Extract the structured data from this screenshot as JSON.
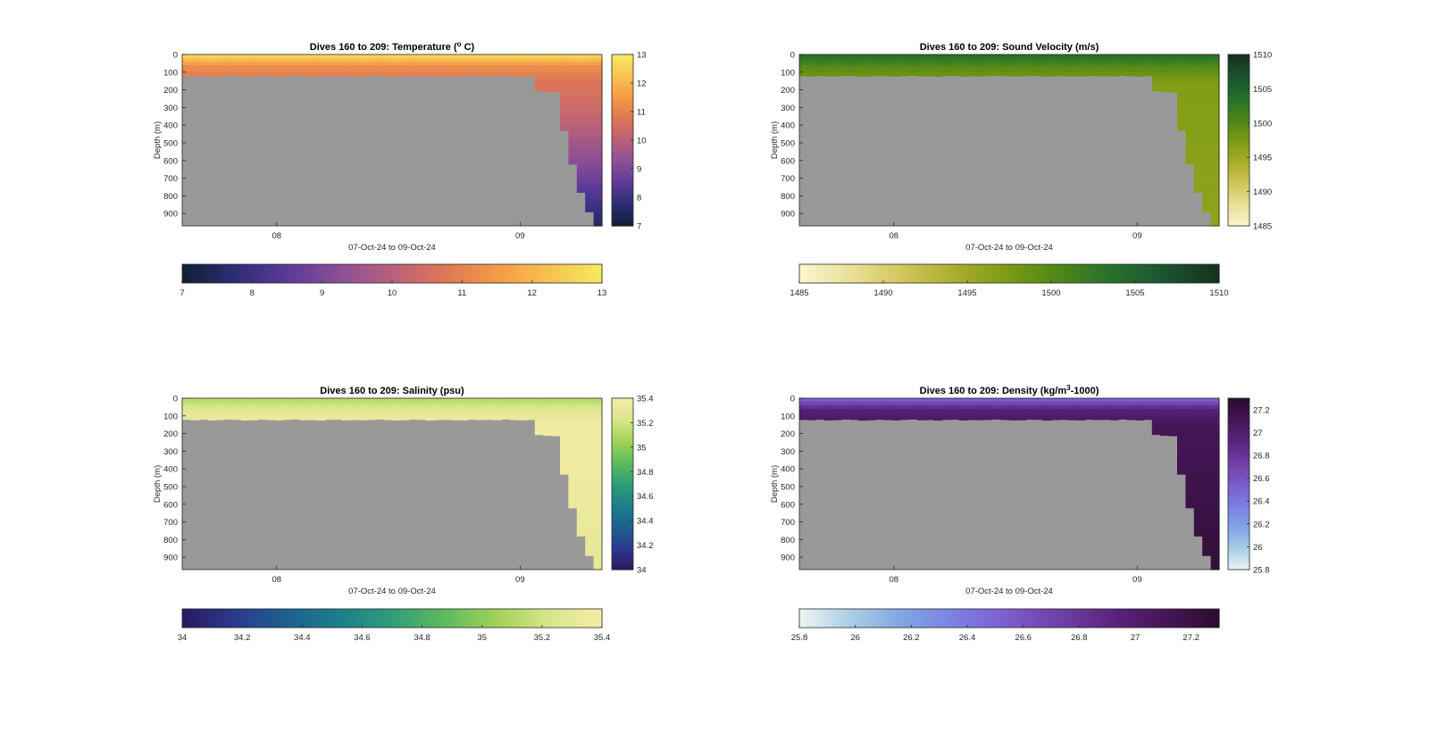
{
  "figure": {
    "background": "#ffffff",
    "mask_color": "#999999"
  },
  "chart_data": [
    {
      "type": "heatmap",
      "variable": "temperature",
      "title": "Dives 160 to 209: Temperature (",
      "title_sup": "o",
      "title_tail": " C)",
      "xlabel": "07-Oct-24 to 09-Oct-24",
      "ylabel": "Depth (m)",
      "x_ticks": [
        "08",
        "09"
      ],
      "y_ticks": [
        0,
        100,
        200,
        300,
        400,
        500,
        600,
        700,
        800,
        900
      ],
      "ylim": [
        0,
        970
      ],
      "y_reversed": true,
      "clim": [
        7,
        13
      ],
      "colorbar_ticks": [
        7,
        8,
        9,
        10,
        11,
        12,
        13
      ],
      "colormap": [
        "#0e1e33",
        "#2c2d73",
        "#5b3a98",
        "#8c4f96",
        "#b8607a",
        "#de7656",
        "#f49a46",
        "#f7c24e",
        "#f5ea63"
      ],
      "profile": {
        "surface_value": 12.6,
        "mid_value": 11.3,
        "deep_value": 10.7,
        "mixed_layer_depth": 45,
        "abyss_value": 7.4
      },
      "coverage_depth": [
        120,
        122,
        119,
        123,
        121,
        118,
        120,
        124,
        122,
        119,
        121,
        123,
        120,
        118,
        122,
        121,
        124,
        120,
        119,
        123,
        121,
        122,
        120,
        118,
        121,
        123,
        122,
        119,
        120,
        124,
        121,
        120,
        122,
        123,
        119,
        121,
        120,
        122,
        118,
        121,
        123,
        120,
        205,
        210,
        212,
        430,
        620,
        780,
        890,
        970
      ]
    },
    {
      "type": "heatmap",
      "variable": "sound_velocity",
      "title": "Dives 160 to 209: Sound Velocity (m/s)",
      "xlabel": "07-Oct-24 to 09-Oct-24",
      "ylabel": "Depth (m)",
      "x_ticks": [
        "08",
        "09"
      ],
      "y_ticks": [
        0,
        100,
        200,
        300,
        400,
        500,
        600,
        700,
        800,
        900
      ],
      "ylim": [
        0,
        970
      ],
      "y_reversed": true,
      "clim": [
        1485,
        1510
      ],
      "colorbar_ticks": [
        1485,
        1490,
        1495,
        1500,
        1505,
        1510
      ],
      "colormap": [
        "#fbf6cf",
        "#eadf98",
        "#d0c55a",
        "#a8ad2a",
        "#7a9a12",
        "#4b861a",
        "#256f2c",
        "#1b5230",
        "#17311f"
      ],
      "profile": {
        "surface_value": 1503.5,
        "mid_value": 1500.5,
        "deep_value": 1497.0,
        "mixed_layer_depth": 45,
        "abyss_value": 1496.0
      },
      "coverage_depth": [
        120,
        122,
        119,
        123,
        121,
        118,
        120,
        124,
        122,
        119,
        121,
        123,
        120,
        118,
        122,
        121,
        124,
        120,
        119,
        123,
        121,
        122,
        120,
        118,
        121,
        123,
        122,
        119,
        120,
        124,
        121,
        120,
        122,
        123,
        119,
        121,
        120,
        122,
        118,
        121,
        123,
        120,
        205,
        210,
        212,
        430,
        620,
        780,
        890,
        970
      ]
    },
    {
      "type": "heatmap",
      "variable": "salinity",
      "title": "Dives 160 to 209: Salinity (psu)",
      "xlabel": "07-Oct-24 to 09-Oct-24",
      "ylabel": "Depth (m)",
      "x_ticks": [
        "08",
        "09"
      ],
      "y_ticks": [
        0,
        100,
        200,
        300,
        400,
        500,
        600,
        700,
        800,
        900
      ],
      "ylim": [
        0,
        970
      ],
      "y_reversed": true,
      "clim": [
        34,
        35.4
      ],
      "colorbar_ticks": [
        34,
        34.2,
        34.4,
        34.6,
        34.8,
        35,
        35.2,
        35.4
      ],
      "colormap": [
        "#281a5e",
        "#2a3a8e",
        "#1e5f8e",
        "#1c7f8a",
        "#2f9d7a",
        "#5dba5d",
        "#a1d258",
        "#d8e68a",
        "#f6eca8"
      ],
      "profile": {
        "surface_value": 35.12,
        "mid_value": 35.27,
        "deep_value": 35.37,
        "mixed_layer_depth": 45,
        "abyss_value": 35.3
      },
      "coverage_depth": [
        120,
        122,
        119,
        123,
        121,
        118,
        120,
        124,
        122,
        119,
        121,
        123,
        120,
        118,
        122,
        121,
        124,
        120,
        119,
        123,
        121,
        122,
        120,
        118,
        121,
        123,
        122,
        119,
        120,
        124,
        121,
        120,
        122,
        123,
        119,
        121,
        120,
        122,
        118,
        121,
        123,
        120,
        205,
        210,
        212,
        430,
        620,
        780,
        890,
        970
      ]
    },
    {
      "type": "heatmap",
      "variable": "density",
      "title": "Dives 160 to 209: Density (kg/m",
      "title_sup": "3",
      "title_tail": "-1000)",
      "xlabel": "07-Oct-24 to 09-Oct-24",
      "ylabel": "Depth (m)",
      "x_ticks": [
        "08",
        "09"
      ],
      "y_ticks": [
        0,
        100,
        200,
        300,
        400,
        500,
        600,
        700,
        800,
        900
      ],
      "ylim": [
        0,
        970
      ],
      "y_reversed": true,
      "clim": [
        25.8,
        27.3
      ],
      "colorbar_ticks": [
        25.8,
        26,
        26.2,
        26.4,
        26.6,
        26.8,
        27,
        27.2
      ],
      "colormap": [
        "#eef4f4",
        "#a9cde6",
        "#7fa4e2",
        "#7c7fe2",
        "#7c5ccb",
        "#6e3fa6",
        "#5a237d",
        "#451657",
        "#2a0c2c"
      ],
      "profile": {
        "surface_value": 26.55,
        "mid_value": 26.95,
        "deep_value": 27.12,
        "mixed_layer_depth": 45,
        "abyss_value": 27.25
      },
      "coverage_depth": [
        120,
        122,
        119,
        123,
        121,
        118,
        120,
        124,
        122,
        119,
        121,
        123,
        120,
        118,
        122,
        121,
        124,
        120,
        119,
        123,
        121,
        122,
        120,
        118,
        121,
        123,
        122,
        119,
        120,
        124,
        121,
        120,
        122,
        123,
        119,
        121,
        120,
        122,
        118,
        121,
        123,
        120,
        205,
        210,
        212,
        430,
        620,
        780,
        890,
        970
      ]
    }
  ]
}
